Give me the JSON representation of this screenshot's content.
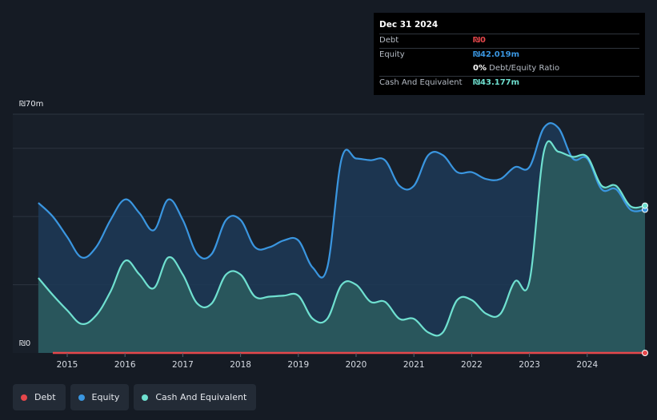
{
  "tooltip": {
    "date": "Dec 31 2024",
    "debt_label": "Debt",
    "debt_value": "₪0",
    "equity_label": "Equity",
    "equity_value": "₪42.019m",
    "ratio_value": "0%",
    "ratio_label": "Debt/Equity Ratio",
    "cash_label": "Cash And Equivalent",
    "cash_value": "₪43.177m"
  },
  "axis": {
    "y_top_label": "₪70m",
    "y_bottom_label": "₪0"
  },
  "legend": [
    {
      "label": "Debt",
      "color": "#e5474b"
    },
    {
      "label": "Equity",
      "color": "#3a96e0"
    },
    {
      "label": "Cash And Equivalent",
      "color": "#6fe0d0"
    }
  ],
  "chart_data": {
    "type": "area",
    "ylim": [
      0,
      70
    ],
    "y_unit": "₪m",
    "x_ticks": [
      "2015",
      "2016",
      "2017",
      "2018",
      "2019",
      "2020",
      "2021",
      "2022",
      "2023",
      "2024"
    ],
    "series": [
      {
        "name": "Equity",
        "color": "#3a96e0",
        "points": [
          [
            2014.5,
            44
          ],
          [
            2014.75,
            40
          ],
          [
            2015.0,
            34
          ],
          [
            2015.25,
            28
          ],
          [
            2015.5,
            31
          ],
          [
            2015.75,
            39
          ],
          [
            2016.0,
            45
          ],
          [
            2016.25,
            41
          ],
          [
            2016.5,
            36
          ],
          [
            2016.75,
            45
          ],
          [
            2017.0,
            39
          ],
          [
            2017.25,
            29
          ],
          [
            2017.5,
            29
          ],
          [
            2017.75,
            39
          ],
          [
            2018.0,
            39
          ],
          [
            2018.25,
            31
          ],
          [
            2018.5,
            31
          ],
          [
            2018.75,
            33
          ],
          [
            2019.0,
            33
          ],
          [
            2019.25,
            25
          ],
          [
            2019.5,
            25
          ],
          [
            2019.75,
            57
          ],
          [
            2020.0,
            57
          ],
          [
            2020.25,
            56.5
          ],
          [
            2020.5,
            56.5
          ],
          [
            2020.75,
            49
          ],
          [
            2021.0,
            49
          ],
          [
            2021.25,
            58
          ],
          [
            2021.5,
            58
          ],
          [
            2021.75,
            53
          ],
          [
            2022.0,
            53
          ],
          [
            2022.25,
            51
          ],
          [
            2022.5,
            51
          ],
          [
            2022.75,
            54.5
          ],
          [
            2023.0,
            54.5
          ],
          [
            2023.25,
            66
          ],
          [
            2023.5,
            66
          ],
          [
            2023.75,
            57
          ],
          [
            2024.0,
            57
          ],
          [
            2024.25,
            48
          ],
          [
            2024.5,
            48
          ],
          [
            2024.75,
            42
          ],
          [
            2025.0,
            42.019
          ]
        ]
      },
      {
        "name": "Cash And Equivalent",
        "color": "#6fe0d0",
        "points": [
          [
            2014.5,
            22
          ],
          [
            2014.75,
            17
          ],
          [
            2015.0,
            12.5
          ],
          [
            2015.25,
            8.5
          ],
          [
            2015.5,
            11
          ],
          [
            2015.75,
            18
          ],
          [
            2016.0,
            27
          ],
          [
            2016.25,
            23
          ],
          [
            2016.5,
            19
          ],
          [
            2016.75,
            28
          ],
          [
            2017.0,
            23
          ],
          [
            2017.25,
            14.5
          ],
          [
            2017.5,
            14.5
          ],
          [
            2017.75,
            23
          ],
          [
            2018.0,
            23
          ],
          [
            2018.25,
            16.5
          ],
          [
            2018.5,
            16.5
          ],
          [
            2018.75,
            16.8
          ],
          [
            2019.0,
            16.8
          ],
          [
            2019.25,
            10
          ],
          [
            2019.5,
            10
          ],
          [
            2019.75,
            20
          ],
          [
            2020.0,
            20
          ],
          [
            2020.25,
            15
          ],
          [
            2020.5,
            15
          ],
          [
            2020.75,
            10
          ],
          [
            2021.0,
            10
          ],
          [
            2021.25,
            6
          ],
          [
            2021.5,
            6
          ],
          [
            2021.75,
            15.5
          ],
          [
            2022.0,
            15.5
          ],
          [
            2022.25,
            11.5
          ],
          [
            2022.5,
            11.5
          ],
          [
            2022.75,
            21
          ],
          [
            2023.0,
            21
          ],
          [
            2023.25,
            59
          ],
          [
            2023.5,
            59
          ],
          [
            2023.75,
            57.5
          ],
          [
            2024.0,
            57.5
          ],
          [
            2024.25,
            49
          ],
          [
            2024.5,
            49
          ],
          [
            2024.75,
            43
          ],
          [
            2025.0,
            43.177
          ]
        ]
      },
      {
        "name": "Debt",
        "color": "#e5474b",
        "points": [
          [
            2014.75,
            0
          ],
          [
            2025.0,
            0
          ]
        ]
      }
    ]
  }
}
